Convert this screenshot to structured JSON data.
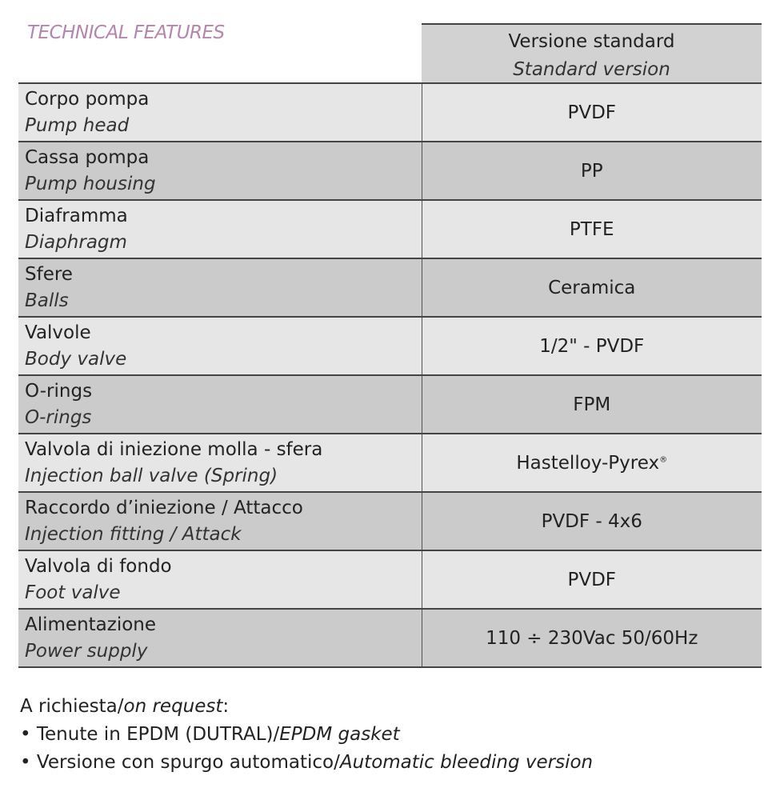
{
  "title": "TECHNICAL FEATURES",
  "header": {
    "it": "Versione standard",
    "en": "Standard version"
  },
  "rows": [
    {
      "it": "Corpo pompa",
      "en": "Pump head",
      "value": "PVDF"
    },
    {
      "it": "Cassa pompa",
      "en": "Pump housing",
      "value": "PP"
    },
    {
      "it": "Diaframma",
      "en": "Diaphragm",
      "value": "PTFE"
    },
    {
      "it": "Sfere",
      "en": "Balls",
      "value": "Ceramica"
    },
    {
      "it": "Valvole",
      "en": "Body valve",
      "value": "1/2\" - PVDF"
    },
    {
      "it": "O-rings",
      "en": "O-rings",
      "value": "FPM"
    },
    {
      "it": "Valvola di iniezione molla - sfera",
      "en": "Injection ball valve (Spring)",
      "value": "Hastelloy-Pyrex",
      "value_sup": "®"
    },
    {
      "it": "Raccordo d’iniezione / Attacco",
      "en": "Injection fitting / Attack",
      "value": "PVDF - 4x6"
    },
    {
      "it": "Valvola di fondo",
      "en": "Foot valve",
      "value": "PVDF"
    },
    {
      "it": "Alimentazione",
      "en": "Power supply",
      "value": "110 ÷ 230Vac 50/60Hz"
    }
  ],
  "notes": {
    "heading_it": "A richiesta/",
    "heading_en": "on request",
    "items": [
      {
        "it": "• Tenute in EPDM (DUTRAL)/",
        "en": "EPDM gasket"
      },
      {
        "it": "• Versione con spurgo automatico/",
        "en": "Automatic bleeding version"
      }
    ]
  },
  "colors": {
    "title": "#b585ad",
    "row_light": "#e6e6e6",
    "row_dark": "#cbcbcb"
  }
}
